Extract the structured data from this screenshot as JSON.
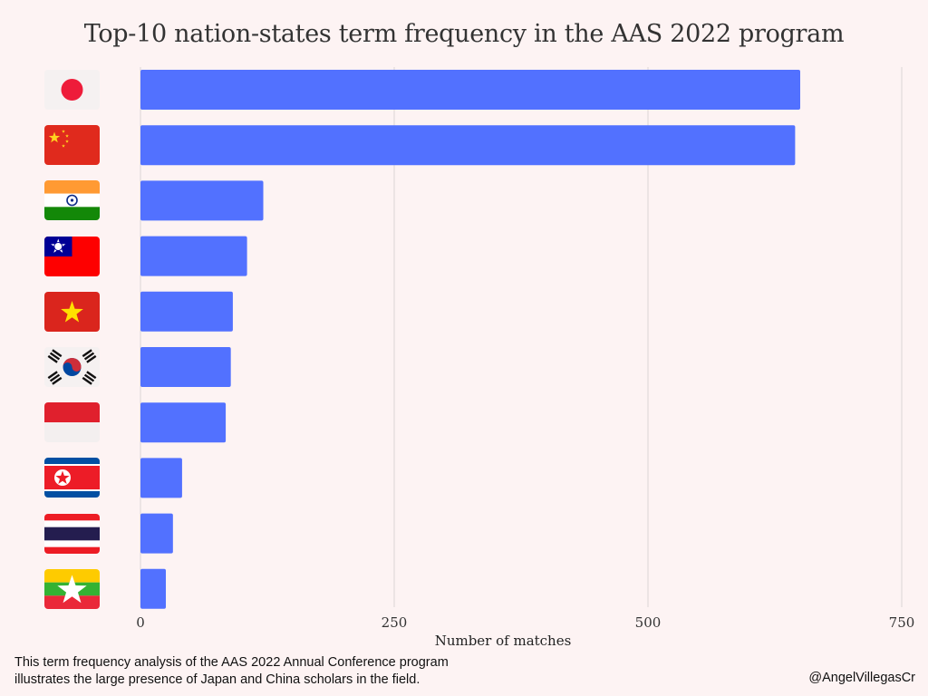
{
  "chart_data": {
    "type": "bar",
    "orientation": "horizontal",
    "title": "Top-10 nation-states term frequency in the AAS 2022 program",
    "xlabel": "Number of matches",
    "ylabel": "",
    "xlim": [
      0,
      750
    ],
    "xticks": [
      0,
      250,
      500,
      750
    ],
    "grid": true,
    "bar_color": "#5271ff",
    "categories": [
      "Japan",
      "China",
      "India",
      "Taiwan",
      "Vietnam",
      "South Korea",
      "Indonesia",
      "North Korea",
      "Thailand",
      "Myanmar"
    ],
    "category_icons": [
      "flag-japan-icon",
      "flag-china-icon",
      "flag-india-icon",
      "flag-taiwan-icon",
      "flag-vietnam-icon",
      "flag-south-korea-icon",
      "flag-indonesia-icon",
      "flag-north-korea-icon",
      "flag-thailand-icon",
      "flag-myanmar-icon"
    ],
    "values": [
      650,
      645,
      121,
      105,
      91,
      89,
      84,
      41,
      32,
      25
    ]
  },
  "caption": {
    "line1": "This term frequency analysis of the AAS 2022 Annual Conference program",
    "line2": "illustrates the large presence of Japan and China scholars in the field."
  },
  "credit": "@AngelVillegasCr"
}
